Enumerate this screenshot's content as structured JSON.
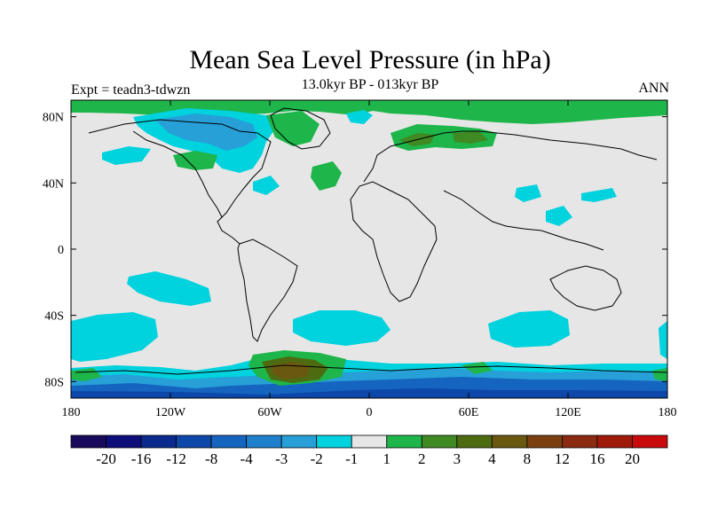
{
  "title": "Mean Sea Level Pressure (in hPa)",
  "subtitle": "13.0kyr BP - 013kyr BP",
  "left_label": "Expt = teadn3-tdwzn",
  "right_label": "ANN",
  "map": {
    "projection": "cylindrical-equidistant",
    "lon_range": [
      -180,
      180
    ],
    "lat_range": [
      -90,
      90
    ],
    "background_class": "-1 to 1 (light grey)",
    "x_ticks": [
      {
        "value": -180,
        "label": "180"
      },
      {
        "value": -120,
        "label": "120W"
      },
      {
        "value": -60,
        "label": "60W"
      },
      {
        "value": 0,
        "label": "0"
      },
      {
        "value": 60,
        "label": "60E"
      },
      {
        "value": 120,
        "label": "120E"
      },
      {
        "value": 180,
        "label": "180"
      }
    ],
    "y_ticks": [
      {
        "value": 80,
        "label": "80N"
      },
      {
        "value": 40,
        "label": "40N"
      },
      {
        "value": 0,
        "label": "0"
      },
      {
        "value": -40,
        "label": "40S"
      },
      {
        "value": -80,
        "label": "80S"
      }
    ]
  },
  "colorbar": {
    "colors": [
      "#1a0a5e",
      "#0e0e7a",
      "#0a2a8e",
      "#0d47a8",
      "#1565c0",
      "#1e80cc",
      "#27a0d8",
      "#00d2de",
      "#e6e6e6",
      "#1eb54a",
      "#3f8a22",
      "#4d6b10",
      "#6b5810",
      "#7a4012",
      "#8a2a10",
      "#a01a0a",
      "#c80a0a"
    ],
    "labels": [
      "-20",
      "-16",
      "-12",
      "-8",
      "-4",
      "-3",
      "-2",
      "-1",
      "1",
      "2",
      "3",
      "4",
      "8",
      "12",
      "16",
      "20"
    ]
  }
}
